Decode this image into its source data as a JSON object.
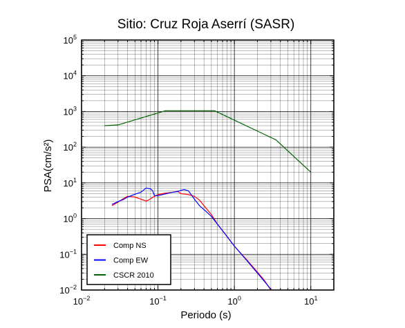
{
  "chart_data": {
    "type": "line",
    "title": "Sitio: Cruz Roja Aserrí (SASR)",
    "xlabel": "Periodo (s)",
    "ylabel": "PSA(cm/s²)",
    "xscale": "log",
    "yscale": "log",
    "xlim": [
      0.01,
      20
    ],
    "ylim": [
      0.01,
      100000
    ],
    "grid": true,
    "legend_position": "bottom-left",
    "x_ticks": [
      {
        "base": "10",
        "exp": "−2"
      },
      {
        "base": "10",
        "exp": "−1"
      },
      {
        "base": "10",
        "exp": "0"
      },
      {
        "base": "10",
        "exp": "1"
      }
    ],
    "y_ticks": [
      {
        "base": "10",
        "exp": "−2"
      },
      {
        "base": "10",
        "exp": "−1"
      },
      {
        "base": "10",
        "exp": "0"
      },
      {
        "base": "10",
        "exp": "1"
      },
      {
        "base": "10",
        "exp": "2"
      },
      {
        "base": "10",
        "exp": "3"
      },
      {
        "base": "10",
        "exp": "4"
      },
      {
        "base": "10",
        "exp": "5"
      }
    ],
    "series": [
      {
        "name": "Comp NS",
        "color": "#ff0000",
        "x": [
          0.025,
          0.03,
          0.035,
          0.04,
          0.05,
          0.06,
          0.07,
          0.075,
          0.09,
          0.1,
          0.12,
          0.15,
          0.18,
          0.2,
          0.25,
          0.3,
          0.35,
          0.4,
          0.5,
          0.6,
          0.75,
          1.0,
          1.5,
          2.0,
          2.5,
          3.0
        ],
        "y": [
          2.3,
          2.9,
          3.6,
          4.2,
          4.0,
          3.5,
          3.1,
          3.3,
          4.2,
          4.7,
          5.1,
          5.4,
          5.8,
          5.0,
          4.7,
          4.2,
          3.3,
          2.3,
          1.3,
          0.7,
          0.38,
          0.17,
          0.065,
          0.032,
          0.018,
          0.01
        ]
      },
      {
        "name": "Comp EW",
        "color": "#0000ff",
        "x": [
          0.025,
          0.03,
          0.035,
          0.04,
          0.05,
          0.06,
          0.065,
          0.07,
          0.08,
          0.085,
          0.09,
          0.1,
          0.12,
          0.15,
          0.18,
          0.2,
          0.22,
          0.25,
          0.3,
          0.35,
          0.4,
          0.5,
          0.6,
          0.75,
          1.0,
          1.5,
          2.0,
          2.5,
          3.0
        ],
        "y": [
          2.5,
          3.0,
          3.4,
          4.0,
          4.8,
          5.5,
          6.3,
          7.2,
          6.8,
          6.0,
          4.4,
          4.4,
          4.8,
          5.4,
          5.7,
          6.2,
          6.5,
          6.0,
          3.5,
          2.3,
          1.8,
          1.15,
          0.7,
          0.38,
          0.17,
          0.062,
          0.03,
          0.017,
          0.0105
        ]
      },
      {
        "name": "CSCR 2010",
        "color": "#006400",
        "x": [
          0.02,
          0.03,
          0.125,
          0.55,
          3.5,
          10
        ],
        "y": [
          400,
          420,
          1050,
          1050,
          160,
          20
        ]
      }
    ]
  }
}
